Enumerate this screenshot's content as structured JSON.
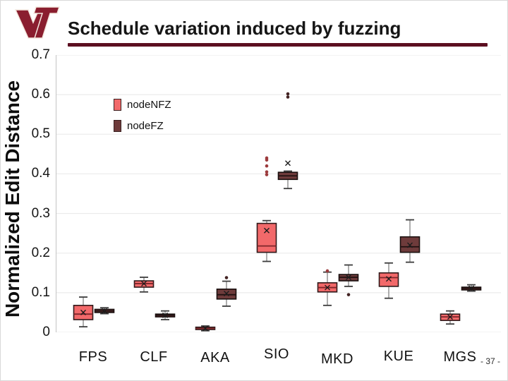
{
  "slide": {
    "title": "Schedule variation induced by fuzzing",
    "page_number": "- 37 -",
    "logo": "VT"
  },
  "colors": {
    "accent_maroon": "#5C0F21",
    "logo_maroon": "#8A1E2F",
    "grid": "#e8e8e8",
    "nfz_fill": "#F2696A",
    "fz_fill": "#6E3B3B"
  },
  "chart_data": {
    "type": "boxplot",
    "title": "",
    "ylabel": "Normalized Edit Distance",
    "xlabel": "",
    "ylim": [
      0,
      0.7
    ],
    "yticks": [
      "0.7",
      "0.6",
      "0.5",
      "0.4",
      "0.3",
      "0.2",
      "0.1",
      "0"
    ],
    "categories": [
      "FPS",
      "CLF",
      "AKA",
      "SIO",
      "MKD",
      "KUE",
      "MGS"
    ],
    "grid": true,
    "legend_position": "upper-left-inside",
    "legend": [
      {
        "label": "nodeNFZ",
        "color": "#F2696A"
      },
      {
        "label": "nodeFZ",
        "color": "#6E3B3B"
      }
    ],
    "series": [
      {
        "name": "nodeNFZ",
        "color": "#F2696A",
        "boxes": [
          {
            "lo": 0.014,
            "q1": 0.032,
            "med": 0.046,
            "q3": 0.068,
            "hi": 0.089,
            "mean": 0.05,
            "outliers": []
          },
          {
            "lo": 0.102,
            "q1": 0.114,
            "med": 0.123,
            "q3": 0.13,
            "hi": 0.139,
            "mean": 0.123,
            "outliers": []
          },
          {
            "lo": 0.004,
            "q1": 0.007,
            "med": 0.01,
            "q3": 0.013,
            "hi": 0.016,
            "mean": 0.01,
            "outliers": []
          },
          {
            "lo": 0.179,
            "q1": 0.202,
            "med": 0.218,
            "q3": 0.275,
            "hi": 0.282,
            "mean": 0.257,
            "outliers": [
              0.398,
              0.405,
              0.42,
              0.435,
              0.44
            ]
          },
          {
            "lo": 0.068,
            "q1": 0.102,
            "med": 0.113,
            "q3": 0.125,
            "hi": 0.152,
            "mean": 0.113,
            "outliers": [
              0.155
            ]
          },
          {
            "lo": 0.086,
            "q1": 0.116,
            "med": 0.138,
            "q3": 0.15,
            "hi": 0.175,
            "mean": 0.135,
            "outliers": []
          },
          {
            "lo": 0.021,
            "q1": 0.03,
            "med": 0.039,
            "q3": 0.046,
            "hi": 0.054,
            "mean": 0.039,
            "outliers": []
          }
        ]
      },
      {
        "name": "nodeFZ",
        "color": "#6E3B3B",
        "boxes": [
          {
            "lo": 0.047,
            "q1": 0.05,
            "med": 0.054,
            "q3": 0.058,
            "hi": 0.062,
            "mean": 0.054,
            "outliers": []
          },
          {
            "lo": 0.032,
            "q1": 0.039,
            "med": 0.043,
            "q3": 0.046,
            "hi": 0.054,
            "mean": 0.043,
            "outliers": []
          },
          {
            "lo": 0.066,
            "q1": 0.084,
            "med": 0.095,
            "q3": 0.109,
            "hi": 0.129,
            "mean": 0.098,
            "outliers": [
              0.138
            ]
          },
          {
            "lo": 0.363,
            "q1": 0.386,
            "med": 0.395,
            "q3": 0.404,
            "hi": 0.407,
            "mean": 0.427,
            "outliers": [
              0.594,
              0.602
            ]
          },
          {
            "lo": 0.116,
            "q1": 0.13,
            "med": 0.139,
            "q3": 0.146,
            "hi": 0.17,
            "mean": 0.139,
            "outliers": [
              0.095
            ]
          },
          {
            "lo": 0.177,
            "q1": 0.202,
            "med": 0.216,
            "q3": 0.241,
            "hi": 0.284,
            "mean": 0.22,
            "outliers": []
          },
          {
            "lo": 0.104,
            "q1": 0.107,
            "med": 0.111,
            "q3": 0.114,
            "hi": 0.12,
            "mean": 0.111,
            "outliers": []
          }
        ]
      }
    ]
  }
}
